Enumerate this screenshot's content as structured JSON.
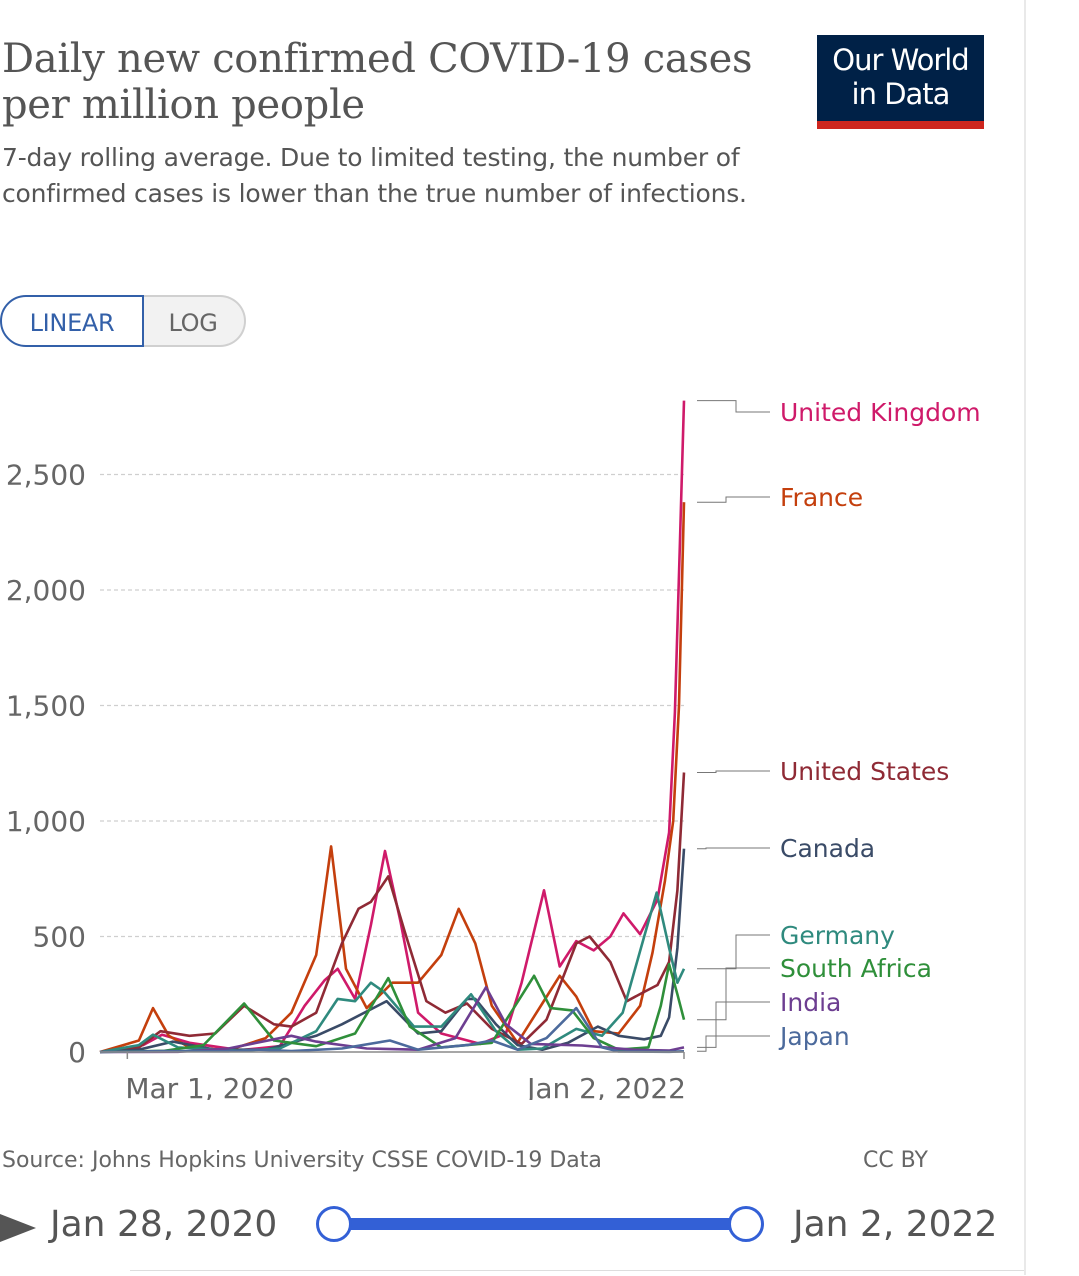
{
  "title": "Daily new confirmed COVID-19 cases per million people",
  "subtitle": "7-day rolling average. Due to limited testing, the number of confirmed cases is lower than the true number of infections.",
  "logo": {
    "line1": "Our World",
    "line2": "in Data"
  },
  "scale_toggle": {
    "linear_label": "LINEAR",
    "log_label": "LOG",
    "selected": "LINEAR"
  },
  "footer": {
    "source": "Source: Johns Hopkins University CSSE COVID-19 Data",
    "license": "CC BY"
  },
  "timeline": {
    "start_label": "Jan 28, 2020",
    "end_label": "Jan 2, 2022",
    "play_icon": "play-icon"
  },
  "chart_data": {
    "type": "line",
    "title": "Daily new confirmed COVID-19 cases per million people",
    "ylim": [
      0,
      2850
    ],
    "y_ticks": [
      0,
      500,
      1000,
      1500,
      2000,
      2500
    ],
    "y_tick_labels": [
      "0",
      "500",
      "1,000",
      "1,500",
      "2,000",
      "2,500"
    ],
    "x_range": [
      "2020-01-28",
      "2022-01-02"
    ],
    "x_tick_dates": [
      "2020-03-01",
      "2022-01-02"
    ],
    "x_tick_labels": [
      "Mar 1, 2020",
      "Jan 2, 2022"
    ],
    "grid": "horizontal-dashed",
    "legend": "right-end-labels",
    "series": [
      {
        "name": "United Kingdom",
        "color": "#cf1a6a",
        "points": [
          [
            "2020-01-28",
            0
          ],
          [
            "2020-03-20",
            30
          ],
          [
            "2020-04-12",
            75
          ],
          [
            "2020-05-15",
            40
          ],
          [
            "2020-07-15",
            8
          ],
          [
            "2020-09-01",
            25
          ],
          [
            "2020-10-01",
            200
          ],
          [
            "2020-10-25",
            310
          ],
          [
            "2020-11-10",
            360
          ],
          [
            "2020-12-01",
            230
          ],
          [
            "2020-12-20",
            550
          ],
          [
            "2021-01-06",
            870
          ],
          [
            "2021-01-25",
            560
          ],
          [
            "2021-02-15",
            170
          ],
          [
            "2021-03-15",
            80
          ],
          [
            "2021-05-01",
            35
          ],
          [
            "2021-06-01",
            80
          ],
          [
            "2021-06-20",
            300
          ],
          [
            "2021-07-17",
            700
          ],
          [
            "2021-08-05",
            370
          ],
          [
            "2021-08-25",
            480
          ],
          [
            "2021-09-15",
            440
          ],
          [
            "2021-10-05",
            500
          ],
          [
            "2021-10-21",
            600
          ],
          [
            "2021-11-10",
            510
          ],
          [
            "2021-12-01",
            660
          ],
          [
            "2021-12-15",
            950
          ],
          [
            "2021-12-22",
            1470
          ],
          [
            "2021-12-28",
            2200
          ],
          [
            "2022-01-02",
            2820
          ]
        ]
      },
      {
        "name": "France",
        "color": "#c43f0d",
        "points": [
          [
            "2020-01-28",
            0
          ],
          [
            "2020-03-15",
            50
          ],
          [
            "2020-04-01",
            190
          ],
          [
            "2020-04-20",
            70
          ],
          [
            "2020-05-15",
            20
          ],
          [
            "2020-07-01",
            8
          ],
          [
            "2020-08-15",
            60
          ],
          [
            "2020-09-15",
            170
          ],
          [
            "2020-10-15",
            420
          ],
          [
            "2020-11-02",
            890
          ],
          [
            "2020-11-20",
            360
          ],
          [
            "2020-12-15",
            190
          ],
          [
            "2021-01-15",
            300
          ],
          [
            "2021-02-15",
            300
          ],
          [
            "2021-03-15",
            420
          ],
          [
            "2021-04-05",
            620
          ],
          [
            "2021-04-25",
            470
          ],
          [
            "2021-05-15",
            200
          ],
          [
            "2021-06-15",
            40
          ],
          [
            "2021-07-15",
            210
          ],
          [
            "2021-08-05",
            330
          ],
          [
            "2021-08-25",
            240
          ],
          [
            "2021-09-15",
            90
          ],
          [
            "2021-10-15",
            80
          ],
          [
            "2021-11-10",
            200
          ],
          [
            "2021-11-25",
            430
          ],
          [
            "2021-12-10",
            740
          ],
          [
            "2021-12-20",
            1000
          ],
          [
            "2021-12-27",
            1500
          ],
          [
            "2022-01-02",
            2380
          ]
        ]
      },
      {
        "name": "United States",
        "color": "#8f2a35",
        "points": [
          [
            "2020-01-28",
            0
          ],
          [
            "2020-03-15",
            20
          ],
          [
            "2020-04-10",
            90
          ],
          [
            "2020-05-15",
            70
          ],
          [
            "2020-06-15",
            80
          ],
          [
            "2020-07-20",
            200
          ],
          [
            "2020-08-25",
            120
          ],
          [
            "2020-09-15",
            110
          ],
          [
            "2020-10-15",
            170
          ],
          [
            "2020-11-15",
            470
          ],
          [
            "2020-12-05",
            620
          ],
          [
            "2020-12-20",
            650
          ],
          [
            "2021-01-10",
            760
          ],
          [
            "2021-01-30",
            520
          ],
          [
            "2021-02-25",
            220
          ],
          [
            "2021-03-20",
            170
          ],
          [
            "2021-04-15",
            210
          ],
          [
            "2021-05-15",
            100
          ],
          [
            "2021-06-20",
            35
          ],
          [
            "2021-07-20",
            140
          ],
          [
            "2021-08-25",
            470
          ],
          [
            "2021-09-10",
            500
          ],
          [
            "2021-10-05",
            390
          ],
          [
            "2021-10-25",
            220
          ],
          [
            "2021-11-15",
            260
          ],
          [
            "2021-12-01",
            290
          ],
          [
            "2021-12-15",
            390
          ],
          [
            "2021-12-25",
            700
          ],
          [
            "2022-01-02",
            1210
          ]
        ]
      },
      {
        "name": "Canada",
        "color": "#3a4b67",
        "points": [
          [
            "2020-01-28",
            0
          ],
          [
            "2020-03-15",
            10
          ],
          [
            "2020-04-25",
            45
          ],
          [
            "2020-06-15",
            10
          ],
          [
            "2020-08-15",
            10
          ],
          [
            "2020-10-15",
            70
          ],
          [
            "2020-11-15",
            120
          ],
          [
            "2021-01-08",
            220
          ],
          [
            "2021-02-15",
            80
          ],
          [
            "2021-03-15",
            90
          ],
          [
            "2021-04-15",
            230
          ],
          [
            "2021-04-25",
            230
          ],
          [
            "2021-05-20",
            120
          ],
          [
            "2021-06-15",
            30
          ],
          [
            "2021-07-15",
            10
          ],
          [
            "2021-08-15",
            40
          ],
          [
            "2021-09-20",
            110
          ],
          [
            "2021-10-15",
            70
          ],
          [
            "2021-11-15",
            55
          ],
          [
            "2021-12-05",
            70
          ],
          [
            "2021-12-15",
            150
          ],
          [
            "2021-12-25",
            450
          ],
          [
            "2022-01-02",
            880
          ]
        ]
      },
      {
        "name": "Germany",
        "color": "#2f8a7e",
        "points": [
          [
            "2020-01-28",
            0
          ],
          [
            "2020-03-15",
            30
          ],
          [
            "2020-04-01",
            75
          ],
          [
            "2020-05-01",
            20
          ],
          [
            "2020-07-15",
            5
          ],
          [
            "2020-09-01",
            15
          ],
          [
            "2020-10-15",
            90
          ],
          [
            "2020-11-10",
            230
          ],
          [
            "2020-12-01",
            220
          ],
          [
            "2020-12-20",
            300
          ],
          [
            "2021-01-05",
            260
          ],
          [
            "2021-02-10",
            110
          ],
          [
            "2021-03-15",
            110
          ],
          [
            "2021-04-20",
            250
          ],
          [
            "2021-05-20",
            90
          ],
          [
            "2021-06-15",
            10
          ],
          [
            "2021-07-15",
            15
          ],
          [
            "2021-08-25",
            100
          ],
          [
            "2021-09-25",
            70
          ],
          [
            "2021-10-20",
            170
          ],
          [
            "2021-11-15",
            500
          ],
          [
            "2021-11-30",
            690
          ],
          [
            "2021-12-15",
            450
          ],
          [
            "2021-12-25",
            300
          ],
          [
            "2022-01-02",
            360
          ]
        ]
      },
      {
        "name": "South Africa",
        "color": "#2f8f3a",
        "points": [
          [
            "2020-01-28",
            0
          ],
          [
            "2020-04-15",
            5
          ],
          [
            "2020-06-01",
            30
          ],
          [
            "2020-07-20",
            210
          ],
          [
            "2020-08-25",
            50
          ],
          [
            "2020-10-15",
            25
          ],
          [
            "2020-12-01",
            80
          ],
          [
            "2021-01-10",
            320
          ],
          [
            "2021-02-05",
            110
          ],
          [
            "2021-03-15",
            20
          ],
          [
            "2021-05-15",
            40
          ],
          [
            "2021-07-05",
            330
          ],
          [
            "2021-07-25",
            190
          ],
          [
            "2021-08-20",
            180
          ],
          [
            "2021-09-15",
            60
          ],
          [
            "2021-10-15",
            10
          ],
          [
            "2021-11-20",
            20
          ],
          [
            "2021-12-05",
            200
          ],
          [
            "2021-12-15",
            380
          ],
          [
            "2021-12-25",
            250
          ],
          [
            "2022-01-02",
            140
          ]
        ]
      },
      {
        "name": "India",
        "color": "#6d3e91",
        "points": [
          [
            "2020-01-28",
            0
          ],
          [
            "2020-05-01",
            1
          ],
          [
            "2020-07-01",
            15
          ],
          [
            "2020-09-15",
            70
          ],
          [
            "2020-10-15",
            45
          ],
          [
            "2020-12-15",
            15
          ],
          [
            "2021-02-15",
            10
          ],
          [
            "2021-04-01",
            60
          ],
          [
            "2021-05-08",
            280
          ],
          [
            "2021-06-01",
            120
          ],
          [
            "2021-07-01",
            35
          ],
          [
            "2021-09-01",
            28
          ],
          [
            "2021-11-01",
            10
          ],
          [
            "2021-12-15",
            6
          ],
          [
            "2022-01-02",
            20
          ]
        ]
      },
      {
        "name": "Japan",
        "color": "#4c6a9c",
        "points": [
          [
            "2020-01-28",
            0
          ],
          [
            "2020-04-15",
            4
          ],
          [
            "2020-07-01",
            3
          ],
          [
            "2020-08-05",
            10
          ],
          [
            "2020-09-15",
            4
          ],
          [
            "2020-11-15",
            15
          ],
          [
            "2021-01-12",
            50
          ],
          [
            "2021-02-15",
            10
          ],
          [
            "2021-04-15",
            30
          ],
          [
            "2021-05-15",
            50
          ],
          [
            "2021-06-15",
            10
          ],
          [
            "2021-07-20",
            60
          ],
          [
            "2021-08-25",
            190
          ],
          [
            "2021-09-25",
            20
          ],
          [
            "2021-10-15",
            2
          ],
          [
            "2021-12-15",
            1
          ],
          [
            "2022-01-02",
            3
          ]
        ]
      }
    ]
  }
}
